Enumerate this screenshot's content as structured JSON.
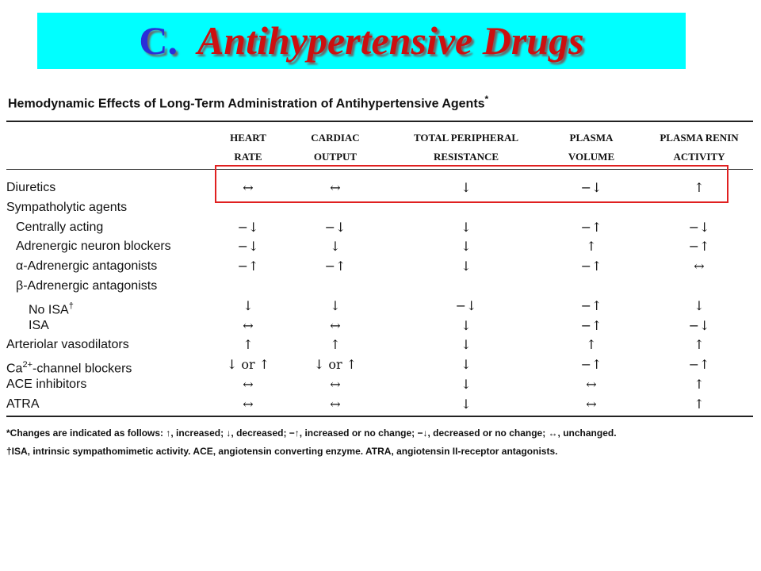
{
  "slide_title": {
    "letter": "C.",
    "text": "Antihypertensive Drugs"
  },
  "table": {
    "caption": "Hemodynamic Effects of Long-Term Administration of Antihypertensive Agents",
    "caption_marker": "*",
    "columns": [
      {
        "line1": "HEART",
        "line2": "RATE"
      },
      {
        "line1": "CARDIAC",
        "line2": "OUTPUT"
      },
      {
        "line1": "TOTAL PERIPHERAL",
        "line2": "RESISTANCE"
      },
      {
        "line1": "PLASMA",
        "line2": "VOLUME"
      },
      {
        "line1": "PLASMA RENIN",
        "line2": "ACTIVITY"
      }
    ],
    "rows": [
      {
        "label": "Diuretics",
        "indent": 0,
        "values": [
          "↔",
          "↔",
          "↓",
          "−↓",
          "↑"
        ]
      },
      {
        "label": "Sympatholytic agents",
        "indent": 0,
        "values": [
          "",
          "",
          "",
          "",
          ""
        ]
      },
      {
        "label": "Centrally acting",
        "indent": 1,
        "values": [
          "−↓",
          "−↓",
          "↓",
          "−↑",
          "−↓"
        ]
      },
      {
        "label": "Adrenergic neuron blockers",
        "indent": 1,
        "values": [
          "−↓",
          "↓",
          "↓",
          "↑",
          "−↑"
        ]
      },
      {
        "label": "α-Adrenergic antagonists",
        "indent": 1,
        "values": [
          "−↑",
          "−↑",
          "↓",
          "−↑",
          "↔"
        ]
      },
      {
        "label": "β-Adrenergic antagonists",
        "indent": 1,
        "values": [
          "",
          "",
          "",
          "",
          ""
        ]
      },
      {
        "label": "No ISA",
        "label_sup": "†",
        "indent": 2,
        "values": [
          "↓",
          "↓",
          "−↓",
          "−↑",
          "↓"
        ]
      },
      {
        "label": "ISA",
        "indent": 2,
        "values": [
          "↔",
          "↔",
          "↓",
          "−↑",
          "−↓"
        ]
      },
      {
        "label": "Arteriolar vasodilators",
        "indent": 0,
        "values": [
          "↑",
          "↑",
          "↓",
          "↑",
          "↑"
        ]
      },
      {
        "label": "Ca",
        "label_sup": "2+",
        "label_rest": "-channel blockers",
        "indent": 0,
        "values": [
          "↓ or ↑",
          "↓ or ↑",
          "↓",
          "−↑",
          "−↑"
        ]
      },
      {
        "label": "ACE inhibitors",
        "indent": 0,
        "values": [
          "↔",
          "↔",
          "↓",
          "↔",
          "↑"
        ]
      },
      {
        "label": "ATRA",
        "indent": 0,
        "values": [
          "↔",
          "↔",
          "↓",
          "↔",
          "↑"
        ]
      }
    ],
    "footnote_1": "*Changes are indicated as follows: ↑, increased; ↓, decreased; −↑, increased or no change; −↓, decreased or no change; ↔, unchanged.",
    "footnote_2": "†ISA, intrinsic sympathomimetic activity. ACE, angiotensin converting enzyme. ATRA, angiotensin II-receptor antagonists."
  },
  "colors": {
    "banner_bg": "#00ffff",
    "title_letter": "#2a2fd8",
    "title_text": "#cc1010",
    "highlight_box": "#e02020"
  }
}
